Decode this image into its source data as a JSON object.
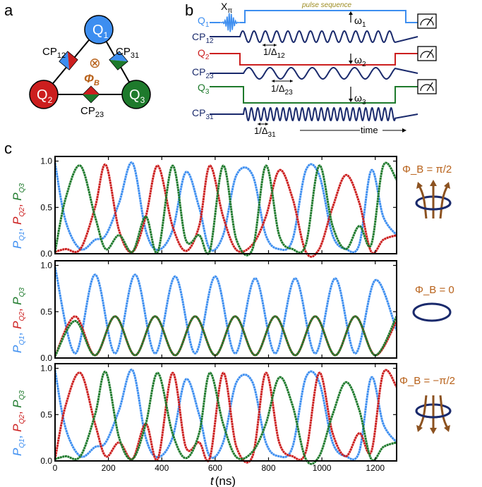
{
  "panel_a": {
    "letter": "a",
    "qubits": [
      {
        "label": "Q1",
        "main": "Q",
        "sub": "1",
        "color": "#3d8ef0"
      },
      {
        "label": "Q2",
        "main": "Q",
        "sub": "2",
        "color": "#cc1e1e"
      },
      {
        "label": "Q3",
        "main": "Q",
        "sub": "3",
        "color": "#1e7a2c"
      }
    ],
    "couplers": [
      {
        "main": "CP",
        "sub": "12"
      },
      {
        "main": "CP",
        "sub": "31"
      },
      {
        "main": "CP",
        "sub": "23"
      }
    ],
    "flux_symbol": "⊗",
    "flux_label_main": "Φ",
    "flux_label_sub": "B",
    "flux_color": "#b8621b"
  },
  "panel_b": {
    "letter": "b",
    "title": "pulse sequence",
    "title_color": "#9b8a1e",
    "xpi_main": "X",
    "xpi_sub": "π",
    "rows": [
      {
        "main": "Q",
        "sub": "1",
        "color": "#3d8ef0",
        "kind": "qubit"
      },
      {
        "main": "CP",
        "sub": "12",
        "color": "#1a2a6c",
        "kind": "coupler"
      },
      {
        "main": "Q",
        "sub": "2",
        "color": "#cc1e1e",
        "kind": "qubit"
      },
      {
        "main": "CP",
        "sub": "23",
        "color": "#1a2a6c",
        "kind": "coupler"
      },
      {
        "main": "Q",
        "sub": "3",
        "color": "#1e7a2c",
        "kind": "qubit"
      },
      {
        "main": "CP",
        "sub": "31",
        "color": "#1a2a6c",
        "kind": "coupler"
      }
    ],
    "omega": [
      {
        "main": "ω",
        "sub": "1"
      },
      {
        "main": "ω",
        "sub": "2"
      },
      {
        "main": "ω",
        "sub": "3"
      }
    ],
    "delta": [
      {
        "main": "1/Δ",
        "sub": "12"
      },
      {
        "main": "1/Δ",
        "sub": "23"
      },
      {
        "main": "1/Δ",
        "sub": "31"
      }
    ],
    "time_label": "time"
  },
  "panel_c": {
    "letter": "c",
    "xlabel_var": "t",
    "xlabel_unit": "(ns)",
    "x_ticks": [
      "0",
      "200",
      "400",
      "600",
      "800",
      "1000",
      "1200"
    ],
    "y_ticks": [
      "0.0",
      "0.5",
      "1.0"
    ],
    "ylabel_parts": [
      {
        "main": "P",
        "sub": "Q1",
        "color": "#3d8ef0"
      },
      {
        "main": "P",
        "sub": "Q2",
        "color": "#cc1e1e"
      },
      {
        "main": "P",
        "sub": "Q3",
        "color": "#1e7a2c"
      }
    ],
    "side_labels": [
      "Φ_B = π/2",
      "Φ_B = 0",
      "Φ_B = −π/2"
    ],
    "side_label_color": "#b8621b",
    "loop_color": "#1a2a6c"
  },
  "colors": {
    "q1": "#3d8ef0",
    "q2": "#cc1e1e",
    "q3": "#1e7a2c",
    "coupler": "#1a2a6c",
    "flux": "#b8621b"
  },
  "chart_data": [
    {
      "type": "line",
      "subtitle": "Φ_B = π/2",
      "xlabel": "t (ns)",
      "ylabel": "P_Q1, P_Q2, P_Q3",
      "xlim": [
        0,
        1280
      ],
      "ylim": [
        0,
        1.05
      ],
      "x": [
        0,
        40,
        95,
        150,
        190,
        240,
        290,
        340,
        385,
        440,
        490,
        540,
        580,
        630,
        680,
        740,
        790,
        840,
        890,
        940,
        990,
        1040,
        1090,
        1140,
        1185,
        1230,
        1280
      ],
      "series": [
        {
          "name": "P_Q1",
          "values": [
            0.98,
            0.35,
            0.05,
            0.15,
            0.2,
            0.55,
            0.98,
            0.25,
            0.04,
            0.25,
            0.88,
            0.5,
            0.05,
            0.2,
            0.85,
            0.85,
            0.2,
            0.05,
            0.15,
            0.9,
            0.85,
            0.2,
            0.05,
            0.1,
            0.9,
            0.4,
            0.2
          ]
        },
        {
          "name": "P_Q2",
          "values": [
            0.02,
            0.05,
            0.05,
            0.5,
            0.96,
            0.25,
            0.02,
            0.4,
            0.95,
            0.3,
            0.03,
            0.3,
            0.95,
            0.4,
            0.04,
            0.1,
            0.4,
            0.9,
            0.6,
            0.02,
            0.05,
            0.5,
            0.85,
            0.55,
            0.02,
            0.15,
            0.2
          ]
        },
        {
          "name": "P_Q3",
          "values": [
            0.02,
            0.6,
            0.95,
            0.4,
            0.05,
            0.2,
            0.02,
            0.4,
            0.02,
            0.95,
            0.15,
            0.2,
            0.03,
            0.95,
            0.15,
            0.05,
            0.95,
            0.2,
            0.05,
            0.1,
            0.95,
            0.3,
            0.05,
            0.3,
            0.1,
            0.95,
            0.8
          ]
        }
      ]
    },
    {
      "type": "line",
      "subtitle": "Φ_B = 0",
      "xlabel": "t (ns)",
      "ylabel": "P_Q1, P_Q2, P_Q3",
      "xlim": [
        0,
        1280
      ],
      "ylim": [
        0,
        1.05
      ],
      "x": [
        0,
        75,
        150,
        225,
        300,
        375,
        450,
        525,
        600,
        675,
        750,
        825,
        900,
        975,
        1050,
        1125,
        1200,
        1280
      ],
      "series": [
        {
          "name": "P_Q1",
          "values": [
            0.98,
            0.05,
            0.9,
            0.05,
            0.9,
            0.05,
            0.88,
            0.05,
            0.88,
            0.05,
            0.86,
            0.05,
            0.86,
            0.05,
            0.86,
            0.05,
            0.84,
            0.3
          ]
        },
        {
          "name": "P_Q2",
          "values": [
            0.02,
            0.45,
            0.03,
            0.45,
            0.03,
            0.45,
            0.03,
            0.45,
            0.03,
            0.45,
            0.03,
            0.45,
            0.03,
            0.45,
            0.03,
            0.45,
            0.03,
            0.4
          ]
        },
        {
          "name": "P_Q3",
          "values": [
            0.02,
            0.4,
            0.03,
            0.45,
            0.03,
            0.45,
            0.03,
            0.45,
            0.03,
            0.45,
            0.03,
            0.45,
            0.03,
            0.45,
            0.03,
            0.45,
            0.03,
            0.45
          ]
        }
      ]
    },
    {
      "type": "line",
      "subtitle": "Φ_B = −π/2",
      "xlabel": "t (ns)",
      "ylabel": "P_Q1, P_Q2, P_Q3",
      "xlim": [
        0,
        1280
      ],
      "ylim": [
        0,
        1.05
      ],
      "x": [
        0,
        40,
        95,
        150,
        190,
        240,
        290,
        340,
        385,
        440,
        490,
        540,
        580,
        630,
        680,
        740,
        790,
        840,
        890,
        940,
        990,
        1040,
        1090,
        1140,
        1185,
        1230,
        1280
      ],
      "series": [
        {
          "name": "P_Q1",
          "values": [
            0.98,
            0.35,
            0.05,
            0.15,
            0.2,
            0.55,
            0.98,
            0.25,
            0.04,
            0.25,
            0.88,
            0.5,
            0.05,
            0.2,
            0.85,
            0.85,
            0.2,
            0.05,
            0.15,
            0.9,
            0.85,
            0.2,
            0.05,
            0.1,
            0.9,
            0.4,
            0.2
          ]
        },
        {
          "name": "P_Q2",
          "values": [
            0.02,
            0.6,
            0.95,
            0.4,
            0.05,
            0.2,
            0.02,
            0.4,
            0.02,
            0.95,
            0.15,
            0.2,
            0.03,
            0.95,
            0.15,
            0.05,
            0.95,
            0.2,
            0.05,
            0.1,
            0.95,
            0.3,
            0.05,
            0.3,
            0.1,
            0.95,
            0.8
          ]
        },
        {
          "name": "P_Q3",
          "values": [
            0.02,
            0.05,
            0.05,
            0.5,
            0.96,
            0.25,
            0.02,
            0.4,
            0.95,
            0.3,
            0.03,
            0.3,
            0.95,
            0.4,
            0.04,
            0.1,
            0.4,
            0.9,
            0.6,
            0.02,
            0.05,
            0.5,
            0.85,
            0.55,
            0.02,
            0.15,
            0.2
          ]
        }
      ]
    }
  ]
}
